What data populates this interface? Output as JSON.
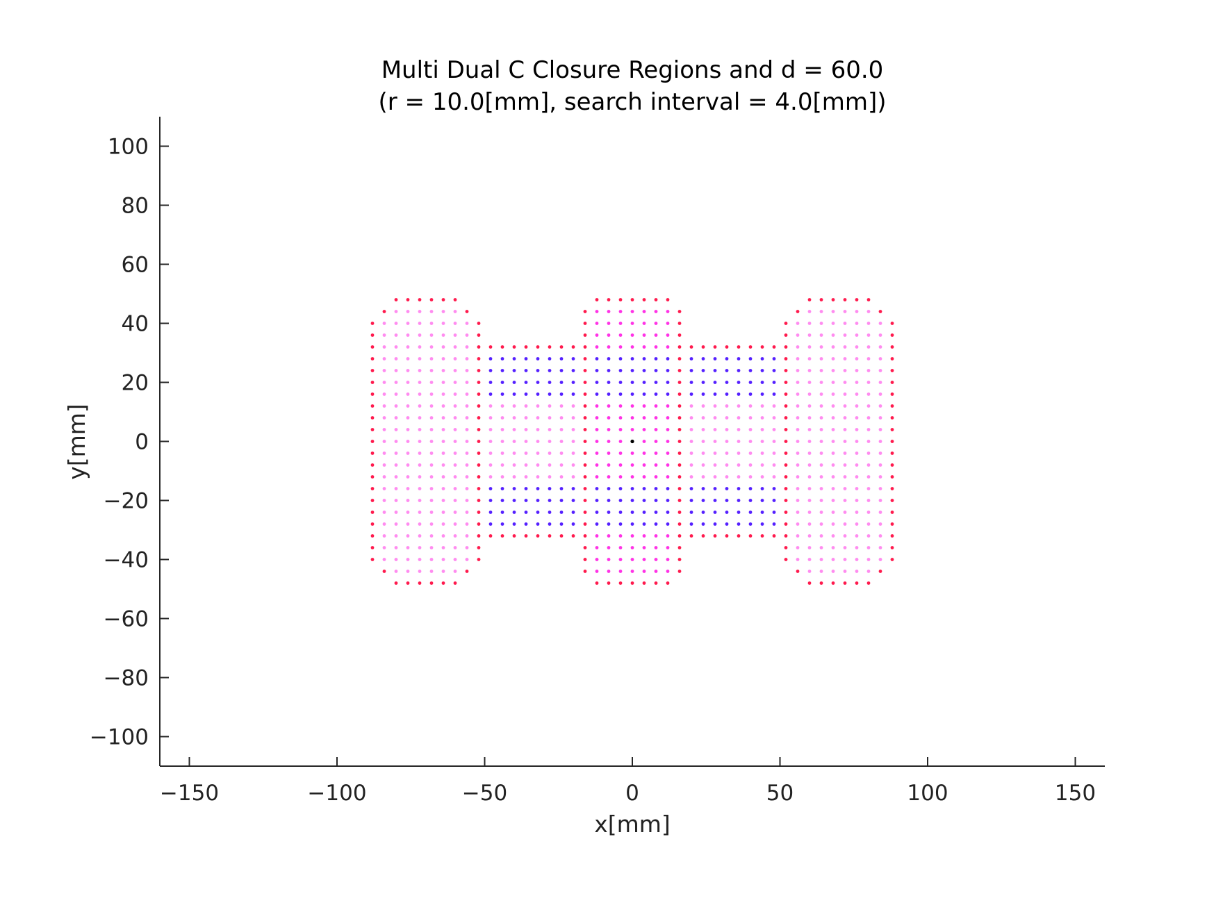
{
  "chart_data": {
    "type": "scatter",
    "title": [
      "Multi Dual C Closure Regions and d = 60.0",
      "(r = 10.0[mm], search interval =  4.0[mm])"
    ],
    "xlabel": "x[mm]",
    "ylabel": "y[mm]",
    "xlim": [
      -160,
      160
    ],
    "ylim": [
      -110,
      110
    ],
    "xticks": [
      -150,
      -100,
      -50,
      0,
      50,
      100,
      150
    ],
    "yticks": [
      100,
      80,
      60,
      40,
      20,
      0,
      -20,
      -40,
      -60,
      -80,
      -100
    ],
    "xtick_labels": [
      "−150",
      "−100",
      "−50",
      "0",
      "50",
      "100",
      "150"
    ],
    "ytick_labels": [
      "100",
      "80",
      "60",
      "40",
      "20",
      "0",
      "−20",
      "−40",
      "−60",
      "−80",
      "−100"
    ],
    "grid": false,
    "grid_spacing": 4,
    "regions": [
      {
        "x_range": [
          -88,
          -52
        ],
        "y_range": [
          -48,
          48
        ],
        "corner_cut": 8,
        "edge_color": "#ff1a4d",
        "fill_color": "#ff8cf0"
      },
      {
        "x_range": [
          -16,
          16
        ],
        "y_range": [
          -48,
          48
        ],
        "corner_cut": 4,
        "edge_color": "#ff1a4d",
        "fill_color": "#ff33e6"
      },
      {
        "x_range": [
          52,
          88
        ],
        "y_range": [
          -48,
          48
        ],
        "corner_cut": 8,
        "edge_color": "#ff1a4d",
        "fill_color": "#ff8cf0"
      }
    ],
    "bridge": {
      "x_range": [
        -52,
        52
      ],
      "y_range": [
        -32,
        32
      ],
      "edge_color": "#ff1a4d",
      "fill_color": "#ff8cf0",
      "blue_rows": [
        -28,
        -24,
        -20,
        -16,
        16,
        20,
        24,
        28
      ],
      "blue_color": "#5520ff"
    },
    "center_point": {
      "x": 0,
      "y": 0,
      "color": "#000000"
    }
  }
}
